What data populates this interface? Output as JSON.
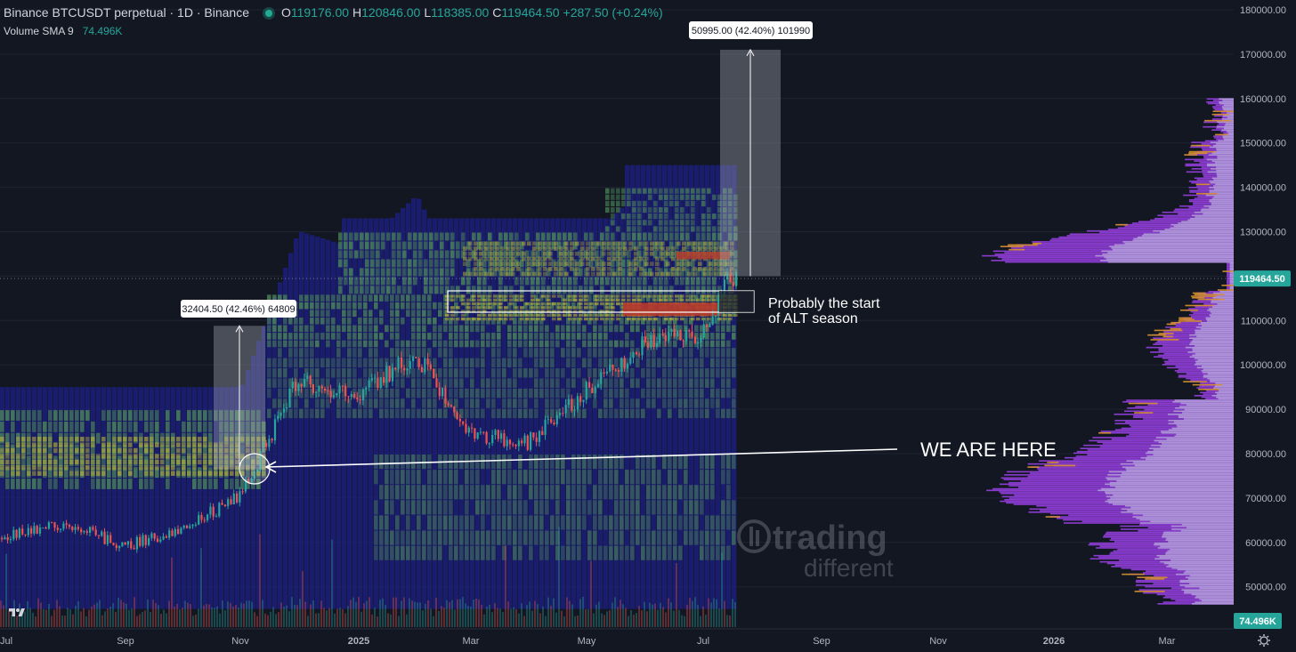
{
  "header": {
    "symbol_title": "Binance BTCUSDT perpetual · 1D · Binance",
    "ohlc": [
      {
        "label": "O",
        "value": "119176.00"
      },
      {
        "label": "H",
        "value": "120846.00"
      },
      {
        "label": "L",
        "value": "118385.00"
      },
      {
        "label": "C",
        "value": "119464.50"
      }
    ],
    "change": "+287.50 (+0.24%)",
    "volume_indicator": {
      "name": "Volume SMA 9",
      "value": "74.496K"
    }
  },
  "chart_data": {
    "type": "candlestick",
    "y_axis_ticks": [
      "180000.00",
      "170000.00",
      "160000.00",
      "150000.00",
      "140000.00",
      "130000.00",
      "120000.00",
      "110000.00",
      "100000.00",
      "90000.00",
      "80000.00",
      "70000.00",
      "60000.00",
      "50000.00"
    ],
    "x_axis_ticks": [
      {
        "label": "Jul",
        "bold": false
      },
      {
        "label": "Sep",
        "bold": false
      },
      {
        "label": "Nov",
        "bold": false
      },
      {
        "label": "2025",
        "bold": true
      },
      {
        "label": "Mar",
        "bold": false
      },
      {
        "label": "May",
        "bold": false
      },
      {
        "label": "Jul",
        "bold": false
      },
      {
        "label": "Sep",
        "bold": false
      },
      {
        "label": "Nov",
        "bold": false
      },
      {
        "label": "2026",
        "bold": true
      },
      {
        "label": "Mar",
        "bold": false
      }
    ],
    "ylim": [
      45000,
      183000
    ],
    "last_price": "119464.50",
    "volume_label": "74.496K",
    "price_path_monthly_closes": [
      {
        "date": "2024-06-28",
        "close": 61000
      },
      {
        "date": "2024-07-31",
        "close": 64600
      },
      {
        "date": "2024-08-31",
        "close": 59000
      },
      {
        "date": "2024-09-30",
        "close": 63300
      },
      {
        "date": "2024-10-31",
        "close": 70200
      },
      {
        "date": "2024-11-30",
        "close": 96400
      },
      {
        "date": "2024-12-31",
        "close": 93400
      },
      {
        "date": "2025-01-31",
        "close": 102400
      },
      {
        "date": "2025-02-28",
        "close": 84300
      },
      {
        "date": "2025-03-31",
        "close": 82500
      },
      {
        "date": "2025-04-30",
        "close": 94200
      },
      {
        "date": "2025-05-31",
        "close": 104600
      },
      {
        "date": "2025-06-30",
        "close": 107100
      },
      {
        "date": "2025-07-14",
        "close": 119464
      }
    ],
    "measures": [
      {
        "label": "32404.50 (42.46%) 64809"
      },
      {
        "label": "50995.00 (42.40%) 101990"
      }
    ],
    "annotations": {
      "alt_season": [
        "Probably the start",
        "of ALT season"
      ],
      "we_are_here": "WE ARE HERE"
    },
    "colors": {
      "background": "#131722",
      "up": "#26a69a",
      "down": "#ef5350",
      "heatmap_low": "#1c1e7a",
      "heatmap_mid": "#4e8a5c",
      "heatmap_high": "#b5b13a",
      "heatmap_hot": "#b83a2c",
      "profile_purple": "#8e3dd6",
      "profile_lilac": "#b39ddb",
      "profile_orange": "#d9922e",
      "price_badge": "#26a69a"
    }
  },
  "watermark": {
    "line1": "trading",
    "line2": "different"
  }
}
